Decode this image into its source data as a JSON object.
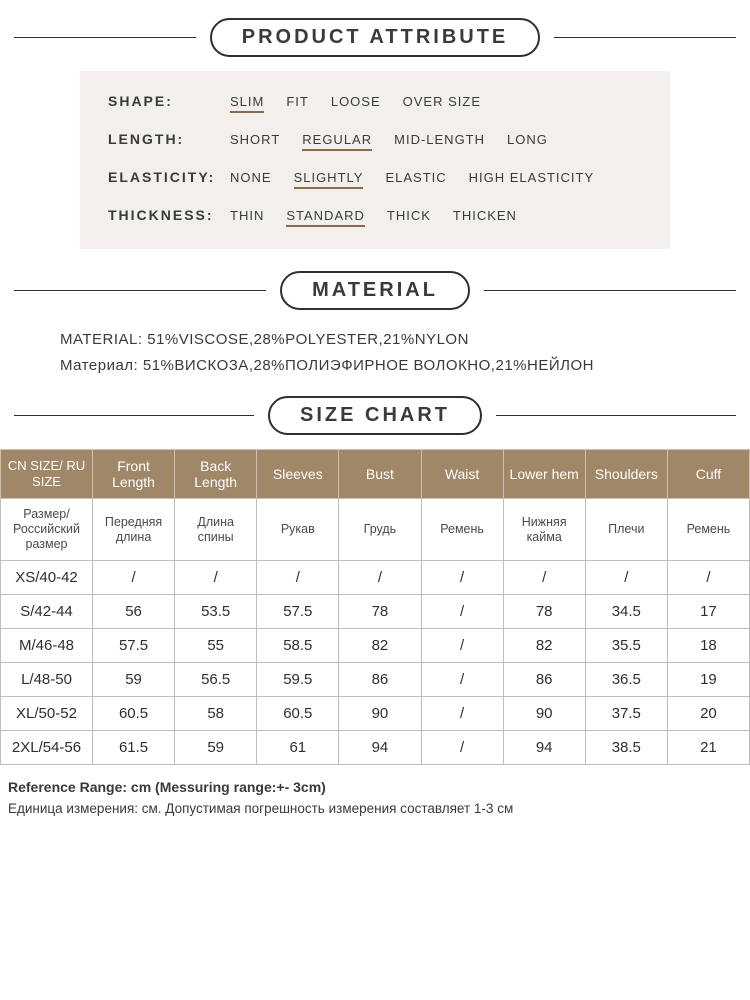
{
  "headers": {
    "attribute": "PRODUCT ATTRIBUTE",
    "material": "MATERIAL",
    "sizechart": "SIZE CHART"
  },
  "attributes": {
    "shape": {
      "label": "SHAPE:",
      "options": [
        "SLIM",
        "FIT",
        "LOOSE",
        "OVER SIZE"
      ],
      "selected": 0
    },
    "length": {
      "label": "LENGTH:",
      "options": [
        "SHORT",
        "REGULAR",
        "MID-LENGTH",
        "LONG"
      ],
      "selected": 1
    },
    "elasticity": {
      "label": "ELASTICITY:",
      "options": [
        "NONE",
        "SLIGHTLY",
        "ELASTIC",
        "HIGH ELASTICITY"
      ],
      "selected": 1
    },
    "thickness": {
      "label": "THICKNESS:",
      "options": [
        "THIN",
        "STANDARD",
        "THICK",
        "THICKEN"
      ],
      "selected": 1
    }
  },
  "material": {
    "en": "MATERIAL: 51%VISCOSE,28%POLYESTER,21%NYLON",
    "ru": "Материал: 51%ВИСКОЗА,28%ПОЛИЭФИРНОЕ ВОЛОКНО,21%НЕЙЛОН"
  },
  "size_table": {
    "columns_en": [
      "CN SIZE/ RU SIZE",
      "Front Length",
      "Back Length",
      "Sleeves",
      "Bust",
      "Waist",
      "Lower hem",
      "Shoulders",
      "Cuff"
    ],
    "columns_ru": [
      "Размер/ Российский размер",
      "Передняя длина",
      "Длина спины",
      "Рукав",
      "Грудь",
      "Ремень",
      "Нижняя кайма",
      "Плечи",
      "Ремень"
    ],
    "rows": [
      [
        "XS/40-42",
        "/",
        "/",
        "/",
        "/",
        "/",
        "/",
        "/",
        "/"
      ],
      [
        "S/42-44",
        "56",
        "53.5",
        "57.5",
        "78",
        "/",
        "78",
        "34.5",
        "17"
      ],
      [
        "M/46-48",
        "57.5",
        "55",
        "58.5",
        "82",
        "/",
        "82",
        "35.5",
        "18"
      ],
      [
        "L/48-50",
        "59",
        "56.5",
        "59.5",
        "86",
        "/",
        "86",
        "36.5",
        "19"
      ],
      [
        "XL/50-52",
        "60.5",
        "58",
        "60.5",
        "90",
        "/",
        "90",
        "37.5",
        "20"
      ],
      [
        "2XL/54-56",
        "61.5",
        "59",
        "61",
        "94",
        "/",
        "94",
        "38.5",
        "21"
      ]
    ]
  },
  "footnotes": {
    "en": "Reference Range: cm (Messuring range:+- 3cm)",
    "ru": "Единица измерения: см. Допустимая погрешность измерения составляет 1-3 см"
  },
  "colors": {
    "header_bg": "#a08768",
    "attr_bg": "#f3f0ec",
    "underline": "#8b6b4a"
  }
}
